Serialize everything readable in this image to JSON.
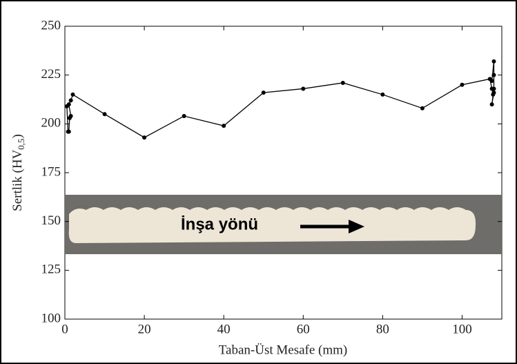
{
  "chart_data": {
    "type": "line",
    "xlabel": "Taban-Üst Mesafe (mm)",
    "ylabel": "Sertlik (HV",
    "ylabel_subscript": "0,5",
    "ylabel_end": ")",
    "annotation": "İnşa yönü",
    "x": [
      0.5,
      0.8,
      1,
      1.2,
      1.5,
      1,
      1.5,
      2,
      10,
      20,
      30,
      40,
      50,
      60,
      70,
      80,
      90,
      100,
      107,
      107.5,
      107.8,
      108,
      107.5,
      108,
      108,
      108,
      107.5
    ],
    "values": [
      209,
      196,
      196,
      203,
      204,
      210,
      212,
      215,
      205,
      193,
      204,
      199,
      216,
      218,
      221,
      215,
      208,
      220,
      223,
      218,
      215,
      216,
      210,
      218,
      225,
      232,
      222
    ],
    "color": "#000000",
    "xlim": [
      0,
      110
    ],
    "xticks": [
      0,
      20,
      40,
      60,
      80,
      100
    ],
    "ylim": [
      100,
      250
    ],
    "yticks": [
      100,
      125,
      150,
      175,
      200,
      225,
      250
    ]
  }
}
